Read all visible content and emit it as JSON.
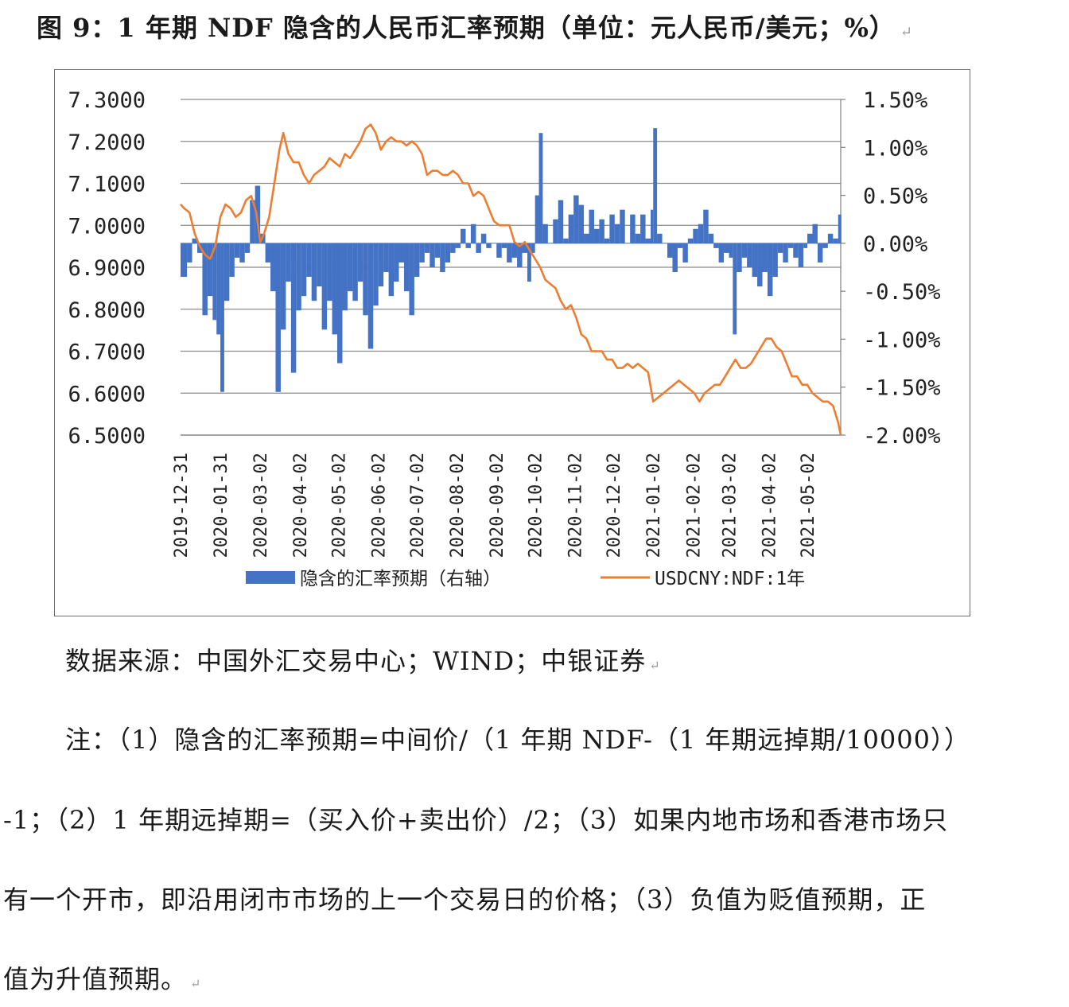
{
  "title": "图 9：1 年期 NDF 隐含的人民币汇率预期（单位：元人民币/美元；%）",
  "source": "数据来源：中国外汇交易中心；WIND；中银证券",
  "notes": [
    "注：（1）隐含的汇率预期=中间价/（1 年期 NDF-（1 年期远掉期/10000））",
    "-1；（2）1 年期远掉期=（买入价+卖出价）/2；（3）如果内地市场和香港市场只",
    "有一个开市，即沿用闭市市场的上一个交易日的价格；（3）负值为贬值预期，正",
    "值为升值预期。"
  ],
  "colors": {
    "bar": "#4472c4",
    "line": "#ed7d31",
    "axis": "#7f7f7f",
    "grid": "#8c8c8c"
  },
  "chart_data": {
    "type": "bar+line",
    "legend_position": "bottom",
    "grid": true,
    "x_ticks": [
      "2019-12-31",
      "2020-01-31",
      "2020-03-02",
      "2020-04-02",
      "2020-05-02",
      "2020-06-02",
      "2020-07-02",
      "2020-08-02",
      "2020-09-02",
      "2020-10-02",
      "2020-11-02",
      "2020-12-02",
      "2021-01-02",
      "2021-02-02",
      "2021-03-02",
      "2021-04-02",
      "2021-05-02"
    ],
    "left_axis": {
      "ticks": [
        "7.3000",
        "7.2000",
        "7.1000",
        "7.0000",
        "6.9000",
        "6.8000",
        "6.7000",
        "6.6000",
        "6.5000"
      ],
      "ylim": [
        6.5,
        7.3
      ]
    },
    "right_axis": {
      "ticks": [
        "1.50%",
        "1.00%",
        "0.50%",
        "0.00%",
        "-0.50%",
        "-1.00%",
        "-1.50%",
        "-2.00%"
      ],
      "ylim": [
        -2.0,
        1.5
      ]
    },
    "series": [
      {
        "name": "隐含的汇率预期（右轴）",
        "type": "area",
        "axis": "right",
        "points": [
          [
            "2019-12-31",
            -0.35
          ],
          [
            "2020-01-05",
            -0.2
          ],
          [
            "2020-01-09",
            0.05
          ],
          [
            "2020-01-13",
            -0.1
          ],
          [
            "2020-01-17",
            -0.75
          ],
          [
            "2020-01-21",
            -0.55
          ],
          [
            "2020-01-25",
            -0.8
          ],
          [
            "2020-01-28",
            -0.95
          ],
          [
            "2020-01-31",
            -1.55
          ],
          [
            "2020-02-03",
            -0.6
          ],
          [
            "2020-02-07",
            -0.35
          ],
          [
            "2020-02-11",
            -0.15
          ],
          [
            "2020-02-15",
            -0.2
          ],
          [
            "2020-02-19",
            -0.1
          ],
          [
            "2020-02-23",
            0.45
          ],
          [
            "2020-02-27",
            0.6
          ],
          [
            "2020-03-02",
            0.1
          ],
          [
            "2020-03-06",
            -0.2
          ],
          [
            "2020-03-10",
            -0.5
          ],
          [
            "2020-03-14",
            -1.55
          ],
          [
            "2020-03-18",
            -0.9
          ],
          [
            "2020-03-22",
            -0.4
          ],
          [
            "2020-03-26",
            -1.35
          ],
          [
            "2020-03-30",
            -0.7
          ],
          [
            "2020-04-03",
            -0.55
          ],
          [
            "2020-04-07",
            -0.35
          ],
          [
            "2020-04-11",
            -0.6
          ],
          [
            "2020-04-15",
            -0.45
          ],
          [
            "2020-04-19",
            -0.9
          ],
          [
            "2020-04-23",
            -0.6
          ],
          [
            "2020-04-27",
            -0.95
          ],
          [
            "2020-05-01",
            -1.25
          ],
          [
            "2020-05-05",
            -0.7
          ],
          [
            "2020-05-09",
            -0.5
          ],
          [
            "2020-05-13",
            -0.6
          ],
          [
            "2020-05-17",
            -0.4
          ],
          [
            "2020-05-21",
            -0.75
          ],
          [
            "2020-05-25",
            -1.1
          ],
          [
            "2020-05-29",
            -0.65
          ],
          [
            "2020-06-02",
            -0.45
          ],
          [
            "2020-06-06",
            -0.3
          ],
          [
            "2020-06-10",
            -0.55
          ],
          [
            "2020-06-14",
            -0.4
          ],
          [
            "2020-06-18",
            -0.2
          ],
          [
            "2020-06-22",
            -0.5
          ],
          [
            "2020-06-26",
            -0.75
          ],
          [
            "2020-06-30",
            -0.35
          ],
          [
            "2020-07-04",
            -0.2
          ],
          [
            "2020-07-08",
            -0.1
          ],
          [
            "2020-07-12",
            -0.25
          ],
          [
            "2020-07-16",
            -0.15
          ],
          [
            "2020-07-20",
            -0.3
          ],
          [
            "2020-07-24",
            -0.2
          ],
          [
            "2020-07-28",
            -0.1
          ],
          [
            "2020-08-01",
            -0.05
          ],
          [
            "2020-08-05",
            0.15
          ],
          [
            "2020-08-09",
            -0.05
          ],
          [
            "2020-08-13",
            0.2
          ],
          [
            "2020-08-17",
            -0.1
          ],
          [
            "2020-08-21",
            0.1
          ],
          [
            "2020-08-25",
            -0.05
          ],
          [
            "2020-08-29",
            0.0
          ],
          [
            "2020-09-02",
            -0.15
          ],
          [
            "2020-09-06",
            -0.05
          ],
          [
            "2020-09-10",
            -0.2
          ],
          [
            "2020-09-14",
            -0.15
          ],
          [
            "2020-09-18",
            -0.25
          ],
          [
            "2020-09-22",
            -0.1
          ],
          [
            "2020-09-26",
            -0.4
          ],
          [
            "2020-09-29",
            -0.1
          ],
          [
            "2020-10-02",
            0.5
          ],
          [
            "2020-10-05",
            1.15
          ],
          [
            "2020-10-08",
            0.2
          ],
          [
            "2020-10-12",
            0.0
          ],
          [
            "2020-10-16",
            0.25
          ],
          [
            "2020-10-20",
            0.45
          ],
          [
            "2020-10-24",
            0.05
          ],
          [
            "2020-10-28",
            0.3
          ],
          [
            "2020-11-01",
            0.5
          ],
          [
            "2020-11-05",
            0.4
          ],
          [
            "2020-11-09",
            0.1
          ],
          [
            "2020-11-13",
            0.35
          ],
          [
            "2020-11-17",
            0.15
          ],
          [
            "2020-11-21",
            0.25
          ],
          [
            "2020-11-25",
            0.05
          ],
          [
            "2020-11-29",
            0.3
          ],
          [
            "2020-12-03",
            0.2
          ],
          [
            "2020-12-07",
            0.35
          ],
          [
            "2020-12-11",
            0.0
          ],
          [
            "2020-12-15",
            0.3
          ],
          [
            "2020-12-19",
            0.1
          ],
          [
            "2020-12-23",
            0.3
          ],
          [
            "2020-12-27",
            0.05
          ],
          [
            "2020-12-31",
            0.35
          ],
          [
            "2021-01-02",
            1.2
          ],
          [
            "2021-01-05",
            0.1
          ],
          [
            "2021-01-09",
            0.0
          ],
          [
            "2021-01-13",
            -0.15
          ],
          [
            "2021-01-17",
            -0.3
          ],
          [
            "2021-01-21",
            -0.05
          ],
          [
            "2021-01-25",
            -0.2
          ],
          [
            "2021-01-29",
            0.05
          ],
          [
            "2021-02-02",
            0.15
          ],
          [
            "2021-02-06",
            0.2
          ],
          [
            "2021-02-10",
            0.35
          ],
          [
            "2021-02-14",
            0.1
          ],
          [
            "2021-02-18",
            -0.05
          ],
          [
            "2021-02-22",
            -0.2
          ],
          [
            "2021-02-26",
            -0.1
          ],
          [
            "2021-03-02",
            -0.15
          ],
          [
            "2021-03-05",
            -0.95
          ],
          [
            "2021-03-08",
            -0.3
          ],
          [
            "2021-03-12",
            -0.15
          ],
          [
            "2021-03-16",
            -0.25
          ],
          [
            "2021-03-20",
            -0.35
          ],
          [
            "2021-03-24",
            -0.45
          ],
          [
            "2021-03-28",
            -0.3
          ],
          [
            "2021-04-01",
            -0.55
          ],
          [
            "2021-04-05",
            -0.35
          ],
          [
            "2021-04-09",
            -0.1
          ],
          [
            "2021-04-13",
            -0.2
          ],
          [
            "2021-04-17",
            -0.05
          ],
          [
            "2021-04-21",
            -0.15
          ],
          [
            "2021-04-25",
            -0.25
          ],
          [
            "2021-04-29",
            -0.05
          ],
          [
            "2021-05-02",
            0.1
          ],
          [
            "2021-05-06",
            0.2
          ],
          [
            "2021-05-10",
            -0.2
          ],
          [
            "2021-05-14",
            -0.05
          ],
          [
            "2021-05-18",
            0.1
          ],
          [
            "2021-05-22",
            0.05
          ],
          [
            "2021-05-26",
            0.3
          ]
        ]
      },
      {
        "name": "USDCNY:NDF:1年",
        "type": "line",
        "axis": "left",
        "points": [
          [
            "2019-12-31",
            7.05
          ],
          [
            "2020-01-03",
            7.04
          ],
          [
            "2020-01-07",
            7.03
          ],
          [
            "2020-01-11",
            6.98
          ],
          [
            "2020-01-15",
            6.95
          ],
          [
            "2020-01-19",
            6.93
          ],
          [
            "2020-01-23",
            6.92
          ],
          [
            "2020-01-27",
            6.95
          ],
          [
            "2020-01-31",
            7.02
          ],
          [
            "2020-02-04",
            7.05
          ],
          [
            "2020-02-08",
            7.04
          ],
          [
            "2020-02-12",
            7.02
          ],
          [
            "2020-02-16",
            7.03
          ],
          [
            "2020-02-20",
            7.06
          ],
          [
            "2020-02-24",
            7.07
          ],
          [
            "2020-02-28",
            7.03
          ],
          [
            "2020-03-02",
            6.96
          ],
          [
            "2020-03-05",
            6.98
          ],
          [
            "2020-03-09",
            7.02
          ],
          [
            "2020-03-13",
            7.1
          ],
          [
            "2020-03-17",
            7.18
          ],
          [
            "2020-03-20",
            7.22
          ],
          [
            "2020-03-24",
            7.17
          ],
          [
            "2020-03-28",
            7.15
          ],
          [
            "2020-04-01",
            7.15
          ],
          [
            "2020-04-05",
            7.12
          ],
          [
            "2020-04-09",
            7.1
          ],
          [
            "2020-04-13",
            7.12
          ],
          [
            "2020-04-17",
            7.13
          ],
          [
            "2020-04-21",
            7.14
          ],
          [
            "2020-04-25",
            7.16
          ],
          [
            "2020-04-29",
            7.15
          ],
          [
            "2020-05-03",
            7.14
          ],
          [
            "2020-05-07",
            7.17
          ],
          [
            "2020-05-11",
            7.16
          ],
          [
            "2020-05-15",
            7.18
          ],
          [
            "2020-05-19",
            7.2
          ],
          [
            "2020-05-23",
            7.23
          ],
          [
            "2020-05-27",
            7.24
          ],
          [
            "2020-05-31",
            7.22
          ],
          [
            "2020-06-04",
            7.18
          ],
          [
            "2020-06-08",
            7.2
          ],
          [
            "2020-06-12",
            7.21
          ],
          [
            "2020-06-16",
            7.2
          ],
          [
            "2020-06-20",
            7.2
          ],
          [
            "2020-06-24",
            7.19
          ],
          [
            "2020-06-28",
            7.2
          ],
          [
            "2020-07-02",
            7.19
          ],
          [
            "2020-07-06",
            7.17
          ],
          [
            "2020-07-10",
            7.12
          ],
          [
            "2020-07-14",
            7.13
          ],
          [
            "2020-07-18",
            7.13
          ],
          [
            "2020-07-22",
            7.12
          ],
          [
            "2020-07-26",
            7.12
          ],
          [
            "2020-07-30",
            7.13
          ],
          [
            "2020-08-03",
            7.12
          ],
          [
            "2020-08-07",
            7.1
          ],
          [
            "2020-08-11",
            7.1
          ],
          [
            "2020-08-15",
            7.07
          ],
          [
            "2020-08-19",
            7.08
          ],
          [
            "2020-08-23",
            7.07
          ],
          [
            "2020-08-27",
            7.04
          ],
          [
            "2020-08-31",
            7.01
          ],
          [
            "2020-09-04",
            7.0
          ],
          [
            "2020-09-08",
            7.0
          ],
          [
            "2020-09-12",
            7.0
          ],
          [
            "2020-09-16",
            6.96
          ],
          [
            "2020-09-20",
            6.95
          ],
          [
            "2020-09-24",
            6.96
          ],
          [
            "2020-09-28",
            6.94
          ],
          [
            "2020-10-02",
            6.92
          ],
          [
            "2020-10-06",
            6.9
          ],
          [
            "2020-10-10",
            6.87
          ],
          [
            "2020-10-14",
            6.86
          ],
          [
            "2020-10-18",
            6.85
          ],
          [
            "2020-10-22",
            6.82
          ],
          [
            "2020-10-26",
            6.8
          ],
          [
            "2020-10-30",
            6.81
          ],
          [
            "2020-11-03",
            6.78
          ],
          [
            "2020-11-07",
            6.74
          ],
          [
            "2020-11-11",
            6.73
          ],
          [
            "2020-11-15",
            6.7
          ],
          [
            "2020-11-19",
            6.7
          ],
          [
            "2020-11-23",
            6.7
          ],
          [
            "2020-11-27",
            6.68
          ],
          [
            "2020-12-01",
            6.68
          ],
          [
            "2020-12-05",
            6.66
          ],
          [
            "2020-12-09",
            6.66
          ],
          [
            "2020-12-13",
            6.67
          ],
          [
            "2020-12-17",
            6.66
          ],
          [
            "2020-12-21",
            6.67
          ],
          [
            "2020-12-25",
            6.66
          ],
          [
            "2020-12-29",
            6.65
          ],
          [
            "2021-01-02",
            6.58
          ],
          [
            "2021-01-06",
            6.59
          ],
          [
            "2021-01-10",
            6.6
          ],
          [
            "2021-01-14",
            6.61
          ],
          [
            "2021-01-18",
            6.62
          ],
          [
            "2021-01-22",
            6.63
          ],
          [
            "2021-01-26",
            6.62
          ],
          [
            "2021-01-30",
            6.61
          ],
          [
            "2021-02-03",
            6.6
          ],
          [
            "2021-02-07",
            6.58
          ],
          [
            "2021-02-11",
            6.6
          ],
          [
            "2021-02-15",
            6.61
          ],
          [
            "2021-02-19",
            6.62
          ],
          [
            "2021-02-23",
            6.62
          ],
          [
            "2021-02-27",
            6.64
          ],
          [
            "2021-03-03",
            6.66
          ],
          [
            "2021-03-07",
            6.68
          ],
          [
            "2021-03-11",
            6.66
          ],
          [
            "2021-03-15",
            6.66
          ],
          [
            "2021-03-19",
            6.67
          ],
          [
            "2021-03-23",
            6.69
          ],
          [
            "2021-03-27",
            6.71
          ],
          [
            "2021-03-31",
            6.73
          ],
          [
            "2021-04-04",
            6.73
          ],
          [
            "2021-04-08",
            6.71
          ],
          [
            "2021-04-12",
            6.7
          ],
          [
            "2021-04-16",
            6.67
          ],
          [
            "2021-04-20",
            6.64
          ],
          [
            "2021-04-24",
            6.64
          ],
          [
            "2021-04-28",
            6.62
          ],
          [
            "2021-05-02",
            6.62
          ],
          [
            "2021-05-06",
            6.6
          ],
          [
            "2021-05-10",
            6.59
          ],
          [
            "2021-05-14",
            6.58
          ],
          [
            "2021-05-18",
            6.58
          ],
          [
            "2021-05-22",
            6.57
          ],
          [
            "2021-05-26",
            6.53
          ],
          [
            "2021-05-28",
            6.5
          ]
        ]
      }
    ]
  }
}
